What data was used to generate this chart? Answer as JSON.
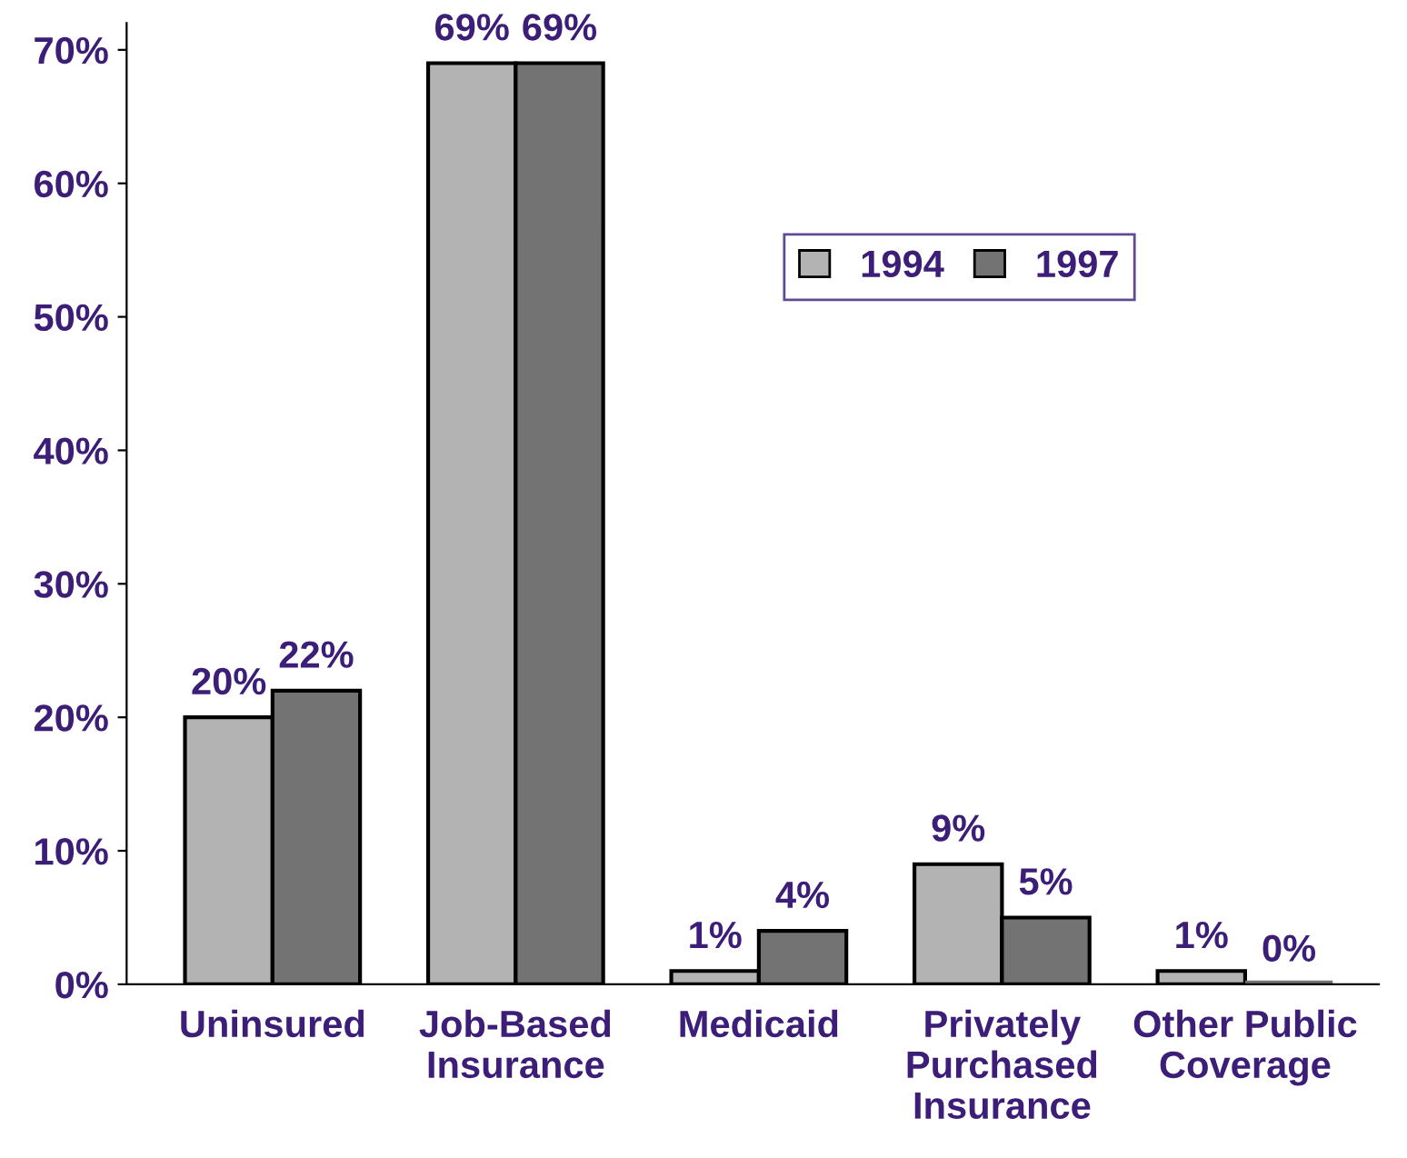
{
  "chart_data": {
    "type": "bar",
    "categories": [
      "Uninsured",
      "Job-Based\nInsurance",
      "Medicaid",
      "Privately\nPurchased\nInsurance",
      "Other Public\nCoverage"
    ],
    "series": [
      {
        "name": "1994",
        "color": "#b3b3b3",
        "values": [
          20,
          69,
          1,
          9,
          1
        ],
        "value_labels": [
          "20%",
          "69%",
          "1%",
          "9%",
          "1%"
        ]
      },
      {
        "name": "1997",
        "color": "#737373",
        "values": [
          22,
          69,
          4,
          5,
          0
        ],
        "value_labels": [
          "22%",
          "69%",
          "4%",
          "5%",
          "0%"
        ]
      }
    ],
    "ylim": [
      0,
      72
    ],
    "yticks": [
      {
        "value": 0,
        "label": "0%"
      },
      {
        "value": 10,
        "label": "10%"
      },
      {
        "value": 20,
        "label": "20%"
      },
      {
        "value": 30,
        "label": "30%"
      },
      {
        "value": 40,
        "label": "40%"
      },
      {
        "value": 50,
        "label": "50%"
      },
      {
        "value": 60,
        "label": "60%"
      },
      {
        "value": 70,
        "label": "70%"
      }
    ],
    "grid": false,
    "legend": "top right"
  }
}
